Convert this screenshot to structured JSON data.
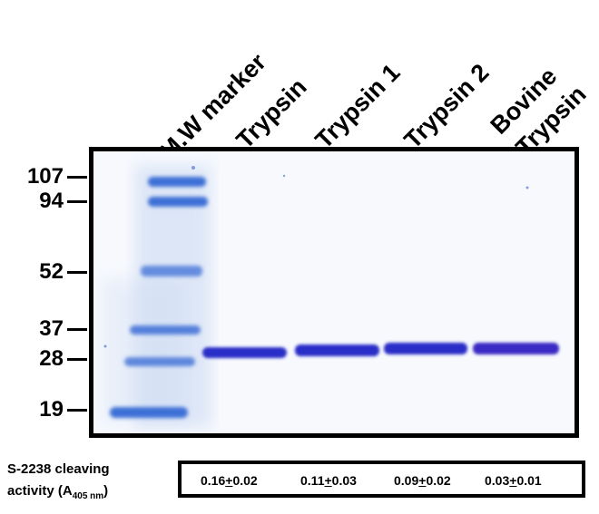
{
  "lane_labels": [
    {
      "line1": "M.W marker",
      "line2": ""
    },
    {
      "line1": "Trypsin",
      "line2": ""
    },
    {
      "line1": "Trypsin 1",
      "line2": ""
    },
    {
      "line1": "Trypsin 2",
      "line2": ""
    },
    {
      "line1": "Bovine",
      "line2": "Trypsin"
    }
  ],
  "mw_markers": [
    "107",
    "94",
    "52",
    "37",
    "28",
    "19"
  ],
  "activity": {
    "caption_line1": "S-2238 cleaving",
    "caption_line2_prefix": "activity (A",
    "caption_sub": "405 nm",
    "caption_line2_suffix": ")",
    "values": [
      {
        "mean": "0.16",
        "pm": "+",
        "sd": "0.02"
      },
      {
        "mean": "0.11",
        "pm": "+",
        "sd": "0.03"
      },
      {
        "mean": "0.09",
        "pm": "+",
        "sd": "0.02"
      },
      {
        "mean": "0.03",
        "pm": "+",
        "sd": "0.01"
      }
    ]
  },
  "colors": {
    "gel_background": "#f6f8fc",
    "marker_band": "#3d6fd6",
    "sample_band": "#2a2fc8",
    "frame": "#000000"
  }
}
